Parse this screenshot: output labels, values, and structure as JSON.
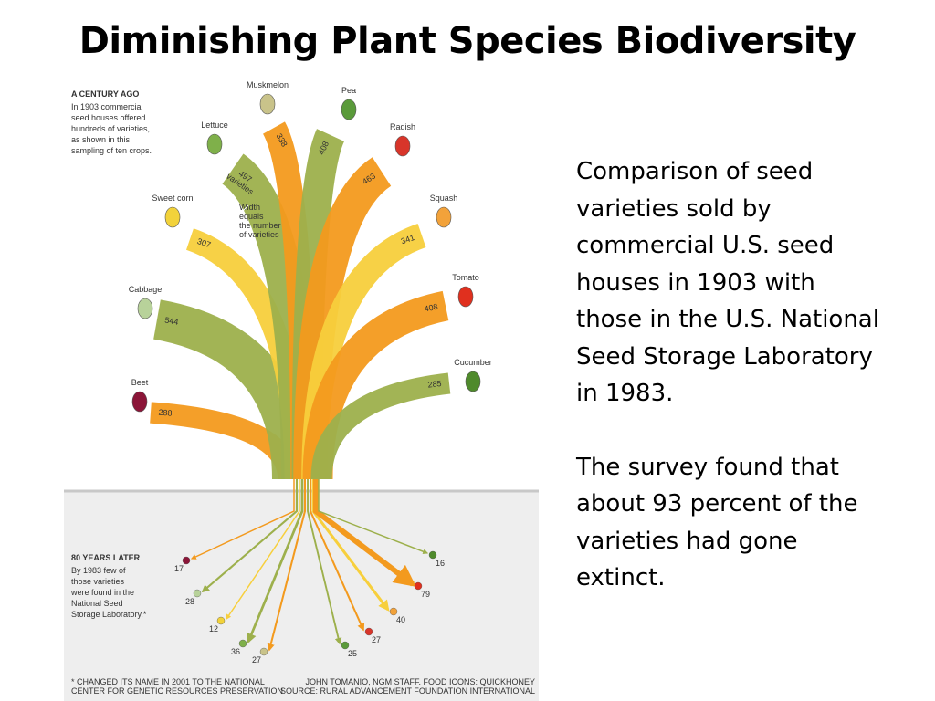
{
  "title": "Diminishing Plant Species Biodiversity",
  "infographic": {
    "century_heading": "A CENTURY AGO",
    "century_text": [
      "In 1903 commercial",
      "seed houses offered",
      "hundreds of varieties,",
      "as shown in this",
      "sampling of ten crops."
    ],
    "width_note": [
      "Width",
      "equals",
      "the number",
      "of varieties"
    ],
    "later_heading": "80 YEARS LATER",
    "later_text": [
      "By 1983 few of",
      "those varieties",
      "were found in the",
      "National Seed",
      "Storage Laboratory.*"
    ],
    "crops": [
      {
        "name": "Beet",
        "varieties_1903": 288,
        "varieties_1983": 17
      },
      {
        "name": "Cabbage",
        "varieties_1903": 544,
        "varieties_1983": 28
      },
      {
        "name": "Sweet corn",
        "varieties_1903": 307,
        "varieties_1983": 12
      },
      {
        "name": "Lettuce",
        "varieties_1903": 497,
        "unit": "varieties",
        "varieties_1983": 36
      },
      {
        "name": "Muskmelon",
        "varieties_1903": 338,
        "varieties_1983": 27
      },
      {
        "name": "Pea",
        "varieties_1903": 408,
        "varieties_1983": 25
      },
      {
        "name": "Radish",
        "varieties_1903": 463,
        "varieties_1983": 27
      },
      {
        "name": "Squash",
        "varieties_1903": 341,
        "varieties_1983": 40
      },
      {
        "name": "Tomato",
        "varieties_1903": 408,
        "varieties_1983": 79
      },
      {
        "name": "Cucumber",
        "varieties_1903": 285,
        "varieties_1983": 16
      }
    ],
    "footnote": [
      "* CHANGED ITS NAME IN 2001 TO THE NATIONAL",
      "CENTER FOR GENETIC RESOURCES PRESERVATION"
    ],
    "credits": [
      "JOHN TOMANIO, NGM STAFF. FOOD ICONS: QUICKHONEY",
      "SOURCE: RURAL ADVANCEMENT FOUNDATION INTERNATIONAL"
    ]
  },
  "description": {
    "paragraphs": [
      [
        "Comparison of seed",
        "varieties sold by",
        "commercial U.S. seed",
        "houses in 1903 with",
        "those in the U.S. National",
        "Seed Storage Laboratory",
        "in 1983."
      ],
      [
        "The survey found that",
        "about 93 percent of the",
        "varieties had gone",
        "extinct."
      ]
    ]
  }
}
